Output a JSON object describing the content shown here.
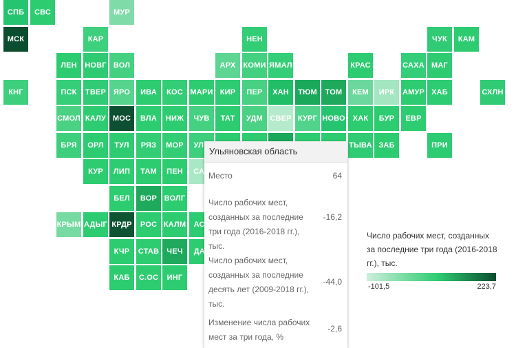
{
  "map": {
    "regions": [
      {
        "label": "СПБ",
        "color": "#27c46f",
        "col": 0,
        "row": 0
      },
      {
        "label": "СВС",
        "color": "#2ecc71",
        "col": 1,
        "row": 0
      },
      {
        "label": "МУР",
        "color": "#7fdca8",
        "col": 4,
        "row": 0
      },
      {
        "label": "МСК",
        "color": "#0b4d2f",
        "col": 0,
        "row": 1
      },
      {
        "label": "КАР",
        "color": "#3fd07d",
        "col": 3,
        "row": 1
      },
      {
        "label": "НЕН",
        "color": "#33cd76",
        "col": 9,
        "row": 1
      },
      {
        "label": "ЧУК",
        "color": "#30cb74",
        "col": 16,
        "row": 1
      },
      {
        "label": "КАМ",
        "color": "#2ecc71",
        "col": 17,
        "row": 1
      },
      {
        "label": "ЛЕН",
        "color": "#2ecc71",
        "col": 2,
        "row": 2
      },
      {
        "label": "НОВГ",
        "color": "#2fcb73",
        "col": 3,
        "row": 2
      },
      {
        "label": "ВОЛ",
        "color": "#46d182",
        "col": 4,
        "row": 2
      },
      {
        "label": "АРХ",
        "color": "#5ed593",
        "col": 8,
        "row": 2
      },
      {
        "label": "КОМИ",
        "color": "#43d080",
        "col": 9,
        "row": 2
      },
      {
        "label": "ЯМАЛ",
        "color": "#35ce78",
        "col": 10,
        "row": 2
      },
      {
        "label": "КРАС",
        "color": "#2dcb72",
        "col": 13,
        "row": 2
      },
      {
        "label": "САХА",
        "color": "#35ce78",
        "col": 15,
        "row": 2
      },
      {
        "label": "МАГ",
        "color": "#2fcb73",
        "col": 16,
        "row": 2
      },
      {
        "label": "КНГ",
        "color": "#3ecf7d",
        "col": 0,
        "row": 3
      },
      {
        "label": "ПСК",
        "color": "#36ce78",
        "col": 2,
        "row": 3
      },
      {
        "label": "ТВЕР",
        "color": "#30cb74",
        "col": 3,
        "row": 3
      },
      {
        "label": "ЯРО",
        "color": "#56d48d",
        "col": 4,
        "row": 3
      },
      {
        "label": "ИВА",
        "color": "#2ecc71",
        "col": 5,
        "row": 3
      },
      {
        "label": "КОС",
        "color": "#33cd76",
        "col": 6,
        "row": 3
      },
      {
        "label": "МАРИ",
        "color": "#2ecc71",
        "col": 7,
        "row": 3
      },
      {
        "label": "КИР",
        "color": "#2dcb72",
        "col": 8,
        "row": 3
      },
      {
        "label": "ПЕР",
        "color": "#48d183",
        "col": 9,
        "row": 3
      },
      {
        "label": "ХАН",
        "color": "#22bd67",
        "col": 10,
        "row": 3
      },
      {
        "label": "ТЮМ",
        "color": "#1aa85a",
        "col": 11,
        "row": 3
      },
      {
        "label": "ТОМ",
        "color": "#1ea95c",
        "col": 12,
        "row": 3
      },
      {
        "label": "КЕМ",
        "color": "#6cd89d",
        "col": 13,
        "row": 3
      },
      {
        "label": "ИРК",
        "color": "#a3e6c1",
        "col": 14,
        "row": 3
      },
      {
        "label": "АМУР",
        "color": "#2ecc71",
        "col": 15,
        "row": 3
      },
      {
        "label": "ХАБ",
        "color": "#2dcb72",
        "col": 16,
        "row": 3
      },
      {
        "label": "СХЛН",
        "color": "#30cb74",
        "col": 18,
        "row": 3
      },
      {
        "label": "СМОЛ",
        "color": "#4ad184",
        "col": 2,
        "row": 4
      },
      {
        "label": "КАЛУ",
        "color": "#2ecc71",
        "col": 3,
        "row": 4
      },
      {
        "label": "МОС",
        "color": "#0d4f31",
        "col": 4,
        "row": 4
      },
      {
        "label": "ВЛА",
        "color": "#2ecc71",
        "col": 5,
        "row": 4
      },
      {
        "label": "НИЖ",
        "color": "#2ecc71",
        "col": 6,
        "row": 4
      },
      {
        "label": "ЧУВ",
        "color": "#46d182",
        "col": 7,
        "row": 4
      },
      {
        "label": "ТАТ",
        "color": "#2ecc71",
        "col": 8,
        "row": 4
      },
      {
        "label": "УДМ",
        "color": "#4ad184",
        "col": 9,
        "row": 4
      },
      {
        "label": "СВЕР",
        "color": "#b5ebcc",
        "col": 10,
        "row": 4
      },
      {
        "label": "КУРГ",
        "color": "#52d38b",
        "col": 11,
        "row": 4
      },
      {
        "label": "НОВО",
        "color": "#27c46f",
        "col": 12,
        "row": 4
      },
      {
        "label": "ХАК",
        "color": "#2ecc71",
        "col": 13,
        "row": 4
      },
      {
        "label": "БУР",
        "color": "#2ecc71",
        "col": 14,
        "row": 4
      },
      {
        "label": "ЕВР",
        "color": "#2ecc71",
        "col": 15,
        "row": 4
      },
      {
        "label": "БРЯ",
        "color": "#3ecf7d",
        "col": 2,
        "row": 5
      },
      {
        "label": "ОРЛ",
        "color": "#2ecc71",
        "col": 3,
        "row": 5
      },
      {
        "label": "ТУЛ",
        "color": "#2fcb73",
        "col": 4,
        "row": 5
      },
      {
        "label": "РЯЗ",
        "color": "#33cd76",
        "col": 5,
        "row": 5
      },
      {
        "label": "МОР",
        "color": "#33cd76",
        "col": 6,
        "row": 5
      },
      {
        "label": "УЛЬ",
        "color": "#3ecf7d",
        "col": 7,
        "row": 5
      },
      {
        "label": "",
        "color": "#2ecc71",
        "col": 8,
        "row": 5
      },
      {
        "label": "",
        "color": "#2ecc71",
        "col": 9,
        "row": 5
      },
      {
        "label": "",
        "color": "#1aa85a",
        "col": 10,
        "row": 5
      },
      {
        "label": "",
        "color": "#2ecc71",
        "col": 11,
        "row": 5
      },
      {
        "label": "",
        "color": "#2ecc71",
        "col": 12,
        "row": 5
      },
      {
        "label": "ТЫВА",
        "color": "#30cb74",
        "col": 13,
        "row": 5
      },
      {
        "label": "ЗАБ",
        "color": "#2ecc71",
        "col": 14,
        "row": 5
      },
      {
        "label": "ПРИ",
        "color": "#2dcb72",
        "col": 16,
        "row": 5
      },
      {
        "label": "КУР",
        "color": "#2ecc71",
        "col": 3,
        "row": 6
      },
      {
        "label": "ЛИП",
        "color": "#2ecc71",
        "col": 4,
        "row": 6
      },
      {
        "label": "ТАМ",
        "color": "#2ecc71",
        "col": 5,
        "row": 6
      },
      {
        "label": "ПЕН",
        "color": "#2ecc71",
        "col": 6,
        "row": 6
      },
      {
        "label": "САР",
        "color": "#a9e8c5",
        "col": 7,
        "row": 6
      },
      {
        "label": "БЕЛ",
        "color": "#2ecc71",
        "col": 4,
        "row": 7
      },
      {
        "label": "ВОР",
        "color": "#1ea95c",
        "col": 5,
        "row": 7
      },
      {
        "label": "ВОЛГ",
        "color": "#2ecc71",
        "col": 6,
        "row": 7
      },
      {
        "label": "КРЫМ",
        "color": "#76daa2",
        "col": 2,
        "row": 8
      },
      {
        "label": "АДЫГ",
        "color": "#2ecc71",
        "col": 3,
        "row": 8
      },
      {
        "label": "КРДР",
        "color": "#0e5433",
        "col": 4,
        "row": 8
      },
      {
        "label": "РОС",
        "color": "#2ecc71",
        "col": 5,
        "row": 8
      },
      {
        "label": "КАЛМ",
        "color": "#2ecc71",
        "col": 6,
        "row": 8
      },
      {
        "label": "АСТ",
        "color": "#2ecc71",
        "col": 7,
        "row": 8
      },
      {
        "label": "КЧР",
        "color": "#2ecc71",
        "col": 4,
        "row": 9
      },
      {
        "label": "СТАВ",
        "color": "#2ecc71",
        "col": 5,
        "row": 9
      },
      {
        "label": "ЧЕЧ",
        "color": "#1ea95c",
        "col": 6,
        "row": 9
      },
      {
        "label": "ДАГ",
        "color": "#2ecc71",
        "col": 7,
        "row": 9
      },
      {
        "label": "КАБ",
        "color": "#2ecc71",
        "col": 4,
        "row": 10
      },
      {
        "label": "С.ОС",
        "color": "#2ecc71",
        "col": 5,
        "row": 10
      },
      {
        "label": "ИНГ",
        "color": "#2ecc71",
        "col": 6,
        "row": 10
      }
    ]
  },
  "tooltip": {
    "title": "Ульяновская область",
    "rows": [
      {
        "label": "Место",
        "value": "64"
      },
      {
        "label": "Число рабочих мест, созданных за последние три года (2016-2018 гг.), тыс.",
        "value": "-16,2"
      },
      {
        "label": "Число рабочих мест, созданных за последние десять лет (2009-2018 гг.), тыс.",
        "value": "-44,0"
      },
      {
        "label": "Изменение числа рабочих мест за три года, %",
        "value": "-2,6"
      }
    ]
  },
  "legend": {
    "title": "Число рабочих мест, созданных за последние три года (2016-2018 гг.), тыс.",
    "min_label": "-101,5",
    "max_label": "223,7",
    "colors": {
      "low": "#cdeedc",
      "mid": "#2ecc71",
      "high": "#0b4d2f"
    }
  }
}
